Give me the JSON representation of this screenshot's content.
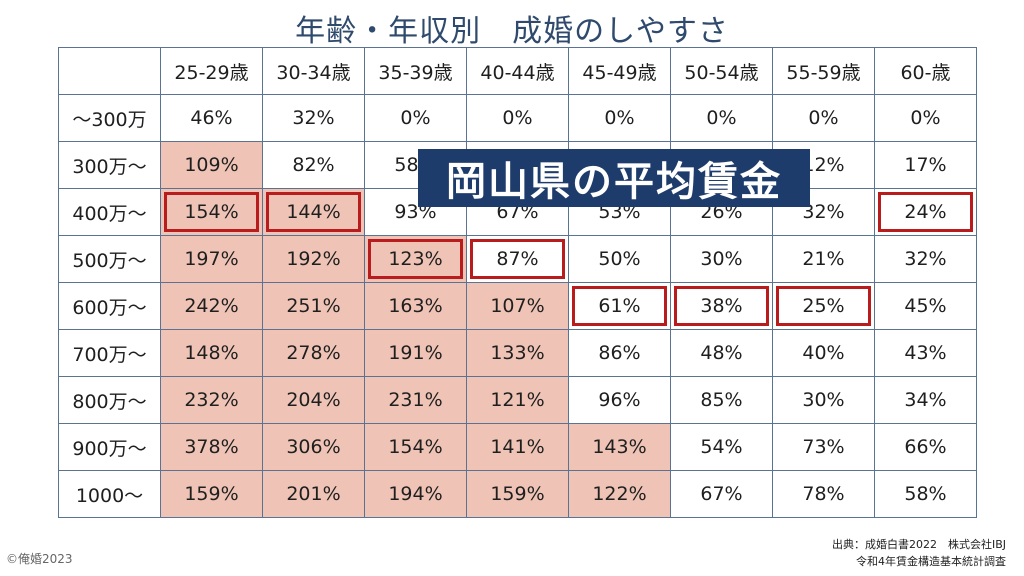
{
  "title": "年齢・年収別　成婚のしやすさ",
  "banner": "岡山県の平均賃金",
  "copyright": "©俺婚2023",
  "source": {
    "line1": "出典：成婚白書2022　株式会社IBJ",
    "line2": "令和4年賃金構造基本統計調査"
  },
  "colors": {
    "highlight_fill": "#efc4b6",
    "box_border": "#b81c1c",
    "banner_bg": "#1e3c6b",
    "title_color": "#2f4a6d"
  },
  "table": {
    "columns": [
      "25-29歳",
      "30-34歳",
      "35-39歳",
      "40-44歳",
      "45-49歳",
      "50-54歳",
      "55-59歳",
      "60-歳"
    ],
    "rows": [
      {
        "label": "〜300万",
        "values": [
          "46%",
          "32%",
          "0%",
          "0%",
          "0%",
          "0%",
          "0%",
          "0%"
        ],
        "highlighted": [],
        "boxed": []
      },
      {
        "label": "300万〜",
        "values": [
          "109%",
          "82%",
          "58%",
          "",
          "",
          "",
          "12%",
          "17%"
        ],
        "highlighted": [
          0
        ],
        "boxed": []
      },
      {
        "label": "400万〜",
        "values": [
          "154%",
          "144%",
          "93%",
          "67%",
          "53%",
          "26%",
          "32%",
          "24%"
        ],
        "highlighted": [
          0,
          1
        ],
        "boxed": [
          0,
          1,
          7
        ]
      },
      {
        "label": "500万〜",
        "values": [
          "197%",
          "192%",
          "123%",
          "87%",
          "50%",
          "30%",
          "21%",
          "32%"
        ],
        "highlighted": [
          0,
          1,
          2
        ],
        "boxed": [
          2,
          3
        ]
      },
      {
        "label": "600万〜",
        "values": [
          "242%",
          "251%",
          "163%",
          "107%",
          "61%",
          "38%",
          "25%",
          "45%"
        ],
        "highlighted": [
          0,
          1,
          2,
          3
        ],
        "boxed": [
          4,
          5,
          6
        ]
      },
      {
        "label": "700万〜",
        "values": [
          "148%",
          "278%",
          "191%",
          "133%",
          "86%",
          "48%",
          "40%",
          "43%"
        ],
        "highlighted": [
          0,
          1,
          2,
          3
        ],
        "boxed": []
      },
      {
        "label": "800万〜",
        "values": [
          "232%",
          "204%",
          "231%",
          "121%",
          "96%",
          "85%",
          "30%",
          "34%"
        ],
        "highlighted": [
          0,
          1,
          2,
          3
        ],
        "boxed": []
      },
      {
        "label": "900万〜",
        "values": [
          "378%",
          "306%",
          "154%",
          "141%",
          "143%",
          "54%",
          "73%",
          "66%"
        ],
        "highlighted": [
          0,
          1,
          2,
          3,
          4
        ],
        "boxed": []
      },
      {
        "label": "1000〜",
        "values": [
          "159%",
          "201%",
          "194%",
          "159%",
          "122%",
          "67%",
          "78%",
          "58%"
        ],
        "highlighted": [
          0,
          1,
          2,
          3,
          4
        ],
        "boxed": []
      }
    ]
  }
}
